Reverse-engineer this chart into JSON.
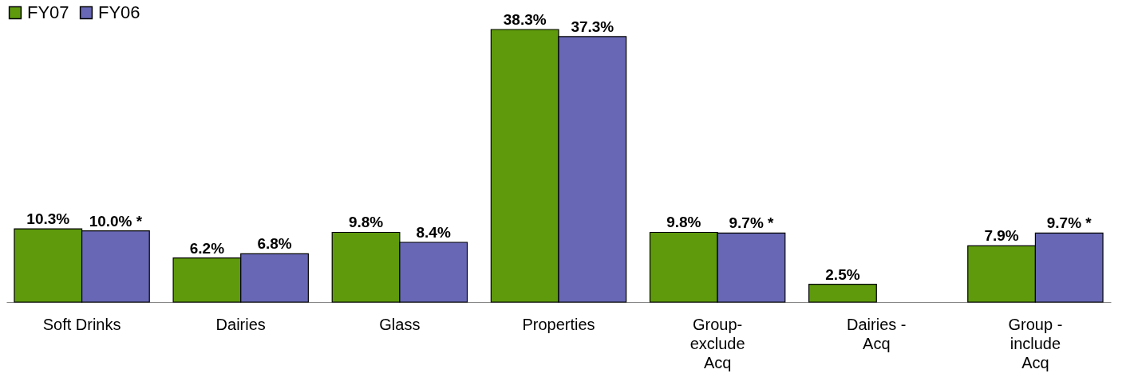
{
  "chart_data": {
    "type": "bar",
    "categories": [
      "Soft Drinks",
      "Dairies",
      "Glass",
      "Properties",
      "Group-\nexclude\nAcq",
      "Dairies -\nAcq",
      "Group -\ninclude\nAcq"
    ],
    "series": [
      {
        "name": "FY07",
        "color": "#5e9a0c",
        "values": [
          10.3,
          6.2,
          9.8,
          38.3,
          9.8,
          2.5,
          7.9
        ],
        "value_labels": [
          "10.3%",
          "6.2%",
          "9.8%",
          "38.3%",
          "9.8%",
          "2.5%",
          "7.9%"
        ]
      },
      {
        "name": "FY06",
        "color": "#6767b5",
        "values": [
          10.0,
          6.8,
          8.4,
          37.3,
          9.7,
          null,
          9.7
        ],
        "value_labels": [
          "10.0% *",
          "6.8%",
          "8.4%",
          "37.3%",
          "9.7% *",
          null,
          "9.7% *"
        ]
      }
    ],
    "legend": "top left"
  }
}
